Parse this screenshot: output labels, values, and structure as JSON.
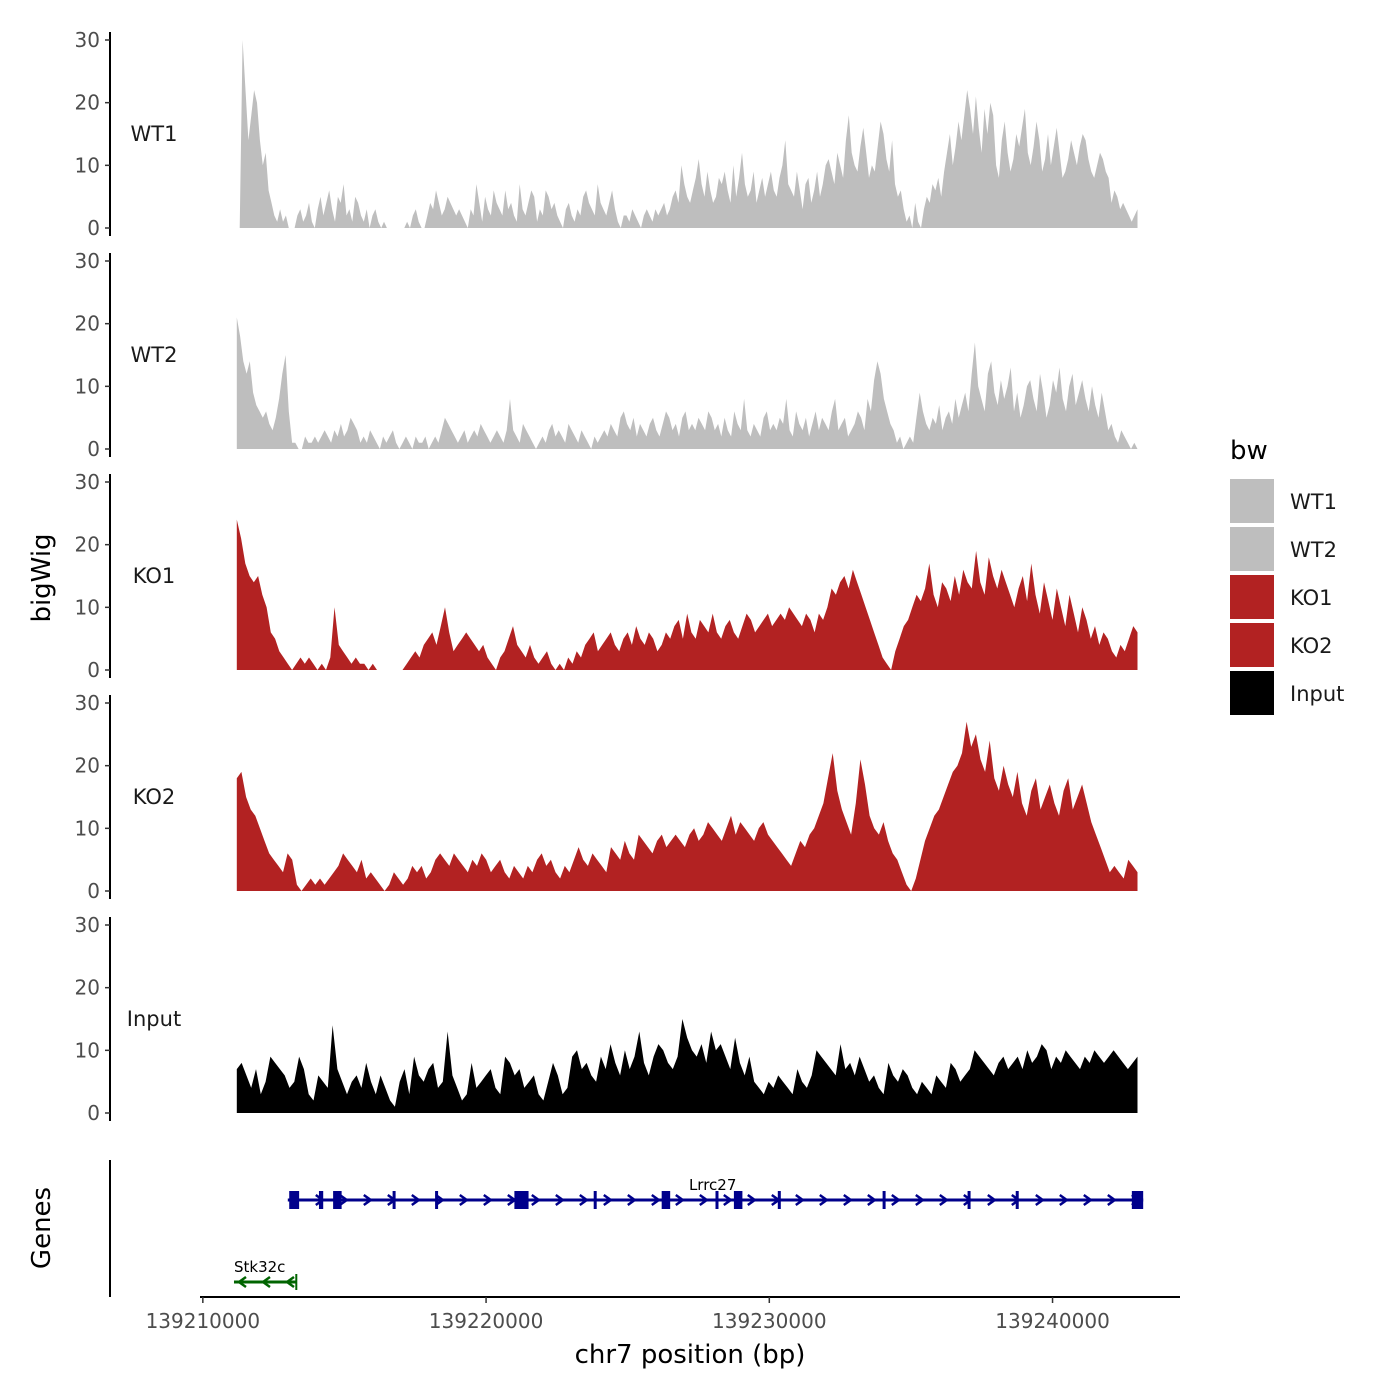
{
  "chart_data": {
    "type": "area",
    "title": "",
    "xlabel": "chr7 position (bp)",
    "ylabel": "bigWig",
    "genes_ylabel": "Genes",
    "xlim": [
      139209900,
      139244500
    ],
    "x_ticks": [
      139210000,
      139220000,
      139230000,
      139240000
    ],
    "x_tick_labels": [
      "139210000",
      "139220000",
      "139230000",
      "139240000"
    ],
    "ylim": [
      0,
      30
    ],
    "y_ticks": [
      0,
      10,
      20,
      30
    ],
    "y_tick_labels": [
      "0",
      "10",
      "20",
      "30"
    ],
    "grid": false,
    "legend": {
      "title": "bw",
      "placement": "right",
      "entries": [
        {
          "label": "WT1",
          "color": "#bebebe"
        },
        {
          "label": "WT2",
          "color": "#bebebe"
        },
        {
          "label": "KO1",
          "color": "#b22222"
        },
        {
          "label": "KO2",
          "color": "#b22222"
        },
        {
          "label": "Input",
          "color": "#000000"
        }
      ]
    },
    "series": [
      {
        "name": "WT1",
        "color": "#bebebe",
        "x_start": 139211200,
        "x_end": 139243000,
        "values": [
          0,
          0,
          30,
          22,
          14,
          18,
          22,
          20,
          14,
          10,
          12,
          6,
          4,
          2,
          1,
          3,
          1,
          2,
          0,
          0,
          0,
          2,
          3,
          1,
          2,
          4,
          1,
          0,
          3,
          5,
          2,
          4,
          6,
          3,
          1,
          5,
          4,
          7,
          2,
          3,
          1,
          5,
          4,
          2,
          1,
          3,
          0,
          2,
          3,
          1,
          0,
          1,
          0,
          0,
          0,
          0,
          0,
          0,
          0,
          1,
          0,
          2,
          3,
          1,
          0,
          0,
          2,
          4,
          3,
          6,
          4,
          2,
          3,
          5,
          4,
          3,
          2,
          3,
          2,
          1,
          0,
          3,
          2,
          7,
          4,
          1,
          5,
          3,
          2,
          6,
          4,
          3,
          2,
          6,
          3,
          4,
          2,
          1,
          7,
          3,
          2,
          4,
          6,
          5,
          1,
          3,
          2,
          6,
          5,
          3,
          4,
          2,
          1,
          0,
          3,
          4,
          2,
          1,
          3,
          2,
          5,
          6,
          4,
          3,
          2,
          7,
          4,
          3,
          2,
          4,
          6,
          3,
          1,
          0,
          2,
          2,
          1,
          3,
          2,
          1,
          0,
          2,
          3,
          2,
          1,
          3,
          2,
          3,
          4,
          2,
          3,
          5,
          6,
          4,
          10,
          7,
          5,
          4,
          6,
          8,
          11,
          7,
          5,
          9,
          6,
          4,
          5,
          8,
          7,
          9,
          6,
          4,
          10,
          5,
          8,
          12,
          7,
          5,
          6,
          9,
          4,
          6,
          8,
          5,
          7,
          9,
          6,
          5,
          8,
          10,
          14,
          7,
          6,
          5,
          9,
          6,
          3,
          7,
          8,
          4,
          6,
          9,
          5,
          7,
          10,
          11,
          9,
          7,
          12,
          10,
          8,
          14,
          18,
          12,
          10,
          9,
          13,
          16,
          12,
          8,
          10,
          9,
          13,
          17,
          15,
          11,
          9,
          14,
          7,
          5,
          6,
          3,
          1,
          2,
          0,
          4,
          1,
          0,
          3,
          5,
          4,
          7,
          6,
          8,
          5,
          9,
          12,
          15,
          10,
          13,
          17,
          14,
          18,
          22,
          19,
          15,
          21,
          16,
          12,
          19,
          15,
          20,
          18,
          10,
          8,
          14,
          17,
          12,
          9,
          11,
          15,
          13,
          16,
          19,
          12,
          10,
          13,
          17,
          14,
          9,
          11,
          15,
          10,
          13,
          16,
          12,
          8,
          9,
          11,
          14,
          12,
          10,
          13,
          15,
          14,
          11,
          9,
          8,
          10,
          12,
          11,
          9,
          8,
          4,
          6,
          5,
          3,
          4,
          3,
          2,
          1,
          2,
          3
        ]
      },
      {
        "name": "WT2",
        "color": "#bebebe",
        "x_start": 139211200,
        "x_end": 139243000,
        "values": [
          21,
          18,
          14,
          12,
          14,
          9,
          7,
          6,
          5,
          6,
          4,
          3,
          5,
          8,
          12,
          15,
          6,
          1,
          1,
          0,
          0,
          2,
          1,
          1,
          2,
          1,
          2,
          3,
          2,
          1,
          3,
          2,
          4,
          2,
          3,
          5,
          4,
          3,
          1,
          2,
          1,
          3,
          2,
          1,
          0,
          2,
          1,
          2,
          3,
          1,
          0,
          1,
          2,
          1,
          0,
          2,
          1,
          1,
          2,
          0,
          1,
          2,
          1,
          3,
          5,
          4,
          3,
          2,
          1,
          2,
          3,
          1,
          2,
          3,
          2,
          4,
          3,
          2,
          1,
          2,
          3,
          2,
          1,
          3,
          8,
          3,
          2,
          1,
          4,
          3,
          2,
          1,
          0,
          1,
          2,
          1,
          3,
          4,
          2,
          3,
          2,
          1,
          4,
          3,
          2,
          1,
          3,
          2,
          1,
          0,
          2,
          1,
          2,
          3,
          2,
          4,
          3,
          2,
          5,
          6,
          4,
          3,
          5,
          2,
          4,
          3,
          2,
          4,
          5,
          3,
          2,
          4,
          6,
          5,
          3,
          4,
          2,
          5,
          6,
          3,
          4,
          3,
          5,
          4,
          3,
          6,
          5,
          3,
          4,
          2,
          5,
          3,
          2,
          6,
          4,
          3,
          8,
          3,
          2,
          4,
          3,
          2,
          5,
          6,
          3,
          4,
          3,
          5,
          4,
          8,
          3,
          2,
          6,
          4,
          3,
          5,
          2,
          4,
          6,
          3,
          5,
          4,
          3,
          6,
          8,
          3,
          4,
          5,
          2,
          3,
          4,
          6,
          5,
          3,
          8,
          6,
          11,
          14,
          12,
          8,
          6,
          4,
          3,
          1,
          2,
          0,
          1,
          2,
          1,
          5,
          9,
          6,
          4,
          3,
          5,
          4,
          7,
          3,
          5,
          6,
          4,
          8,
          5,
          7,
          9,
          6,
          12,
          17,
          10,
          8,
          6,
          12,
          14,
          9,
          7,
          11,
          8,
          10,
          13,
          6,
          9,
          5,
          7,
          10,
          11,
          8,
          6,
          12,
          9,
          5,
          7,
          11,
          9,
          13,
          8,
          6,
          10,
          12,
          7,
          9,
          11,
          8,
          6,
          10,
          7,
          5,
          9,
          6,
          3,
          4,
          2,
          1,
          3,
          2,
          1,
          0,
          1,
          0
        ]
      },
      {
        "name": "KO1",
        "color": "#b22222",
        "x_start": 139211200,
        "x_end": 139243000,
        "values": [
          24,
          21,
          17,
          15,
          14,
          15,
          12,
          10,
          6,
          5,
          3,
          2,
          1,
          0,
          1,
          2,
          1,
          2,
          1,
          0,
          1,
          0,
          2,
          10,
          4,
          3,
          2,
          1,
          2,
          1,
          1,
          0,
          1,
          0,
          0,
          0,
          0,
          0,
          0,
          0,
          1,
          2,
          3,
          2,
          4,
          5,
          6,
          4,
          7,
          10,
          6,
          3,
          4,
          5,
          6,
          5,
          4,
          3,
          4,
          2,
          1,
          0,
          2,
          3,
          5,
          7,
          4,
          3,
          2,
          4,
          2,
          1,
          2,
          3,
          1,
          0,
          1,
          0,
          2,
          1,
          3,
          2,
          4,
          5,
          6,
          3,
          4,
          5,
          6,
          4,
          3,
          5,
          6,
          4,
          7,
          5,
          4,
          6,
          5,
          3,
          4,
          6,
          5,
          7,
          8,
          5,
          9,
          6,
          5,
          8,
          7,
          6,
          9,
          6,
          5,
          7,
          8,
          6,
          5,
          7,
          9,
          8,
          6,
          7,
          8,
          9,
          7,
          8,
          9,
          8,
          10,
          9,
          8,
          7,
          9,
          8,
          6,
          9,
          8,
          10,
          13,
          12,
          14,
          15,
          13,
          16,
          14,
          12,
          10,
          8,
          6,
          4,
          2,
          1,
          0,
          3,
          5,
          7,
          8,
          10,
          12,
          11,
          13,
          17,
          12,
          10,
          14,
          13,
          11,
          15,
          12,
          16,
          14,
          13,
          19,
          14,
          12,
          18,
          15,
          13,
          16,
          14,
          12,
          10,
          13,
          15,
          11,
          17,
          12,
          9,
          14,
          11,
          8,
          13,
          10,
          7,
          12,
          9,
          6,
          10,
          8,
          5,
          7,
          4,
          6,
          5,
          3,
          2,
          4,
          3,
          5,
          7,
          6
        ]
      },
      {
        "name": "KO2",
        "color": "#b22222",
        "x_start": 139211200,
        "x_end": 139243000,
        "values": [
          18,
          19,
          15,
          13,
          12,
          10,
          8,
          6,
          5,
          4,
          3,
          6,
          5,
          1,
          0,
          1,
          2,
          1,
          2,
          1,
          2,
          3,
          4,
          6,
          5,
          4,
          3,
          5,
          2,
          3,
          2,
          1,
          0,
          1,
          3,
          2,
          1,
          2,
          4,
          3,
          4,
          2,
          3,
          5,
          6,
          5,
          4,
          6,
          5,
          4,
          3,
          5,
          4,
          6,
          5,
          3,
          4,
          5,
          3,
          2,
          4,
          3,
          2,
          4,
          3,
          5,
          6,
          4,
          5,
          3,
          2,
          4,
          3,
          5,
          7,
          5,
          4,
          6,
          5,
          4,
          3,
          7,
          6,
          5,
          8,
          6,
          5,
          9,
          8,
          7,
          6,
          8,
          9,
          7,
          8,
          9,
          8,
          7,
          9,
          10,
          8,
          9,
          11,
          10,
          9,
          8,
          10,
          12,
          9,
          11,
          10,
          9,
          8,
          10,
          11,
          9,
          8,
          7,
          6,
          5,
          4,
          6,
          8,
          7,
          9,
          10,
          12,
          14,
          18,
          22,
          16,
          13,
          11,
          9,
          14,
          21,
          17,
          12,
          10,
          9,
          11,
          8,
          6,
          5,
          3,
          1,
          0,
          2,
          5,
          8,
          10,
          12,
          13,
          15,
          17,
          19,
          20,
          22,
          27,
          23,
          25,
          21,
          19,
          24,
          18,
          16,
          20,
          17,
          15,
          19,
          14,
          12,
          16,
          18,
          13,
          15,
          17,
          14,
          12,
          16,
          18,
          13,
          15,
          17,
          14,
          11,
          9,
          7,
          5,
          3,
          4,
          3,
          2,
          5,
          4,
          3
        ]
      },
      {
        "name": "Input",
        "color": "#000000",
        "x_start": 139211200,
        "x_end": 139243000,
        "values": [
          7,
          8,
          6,
          4,
          7,
          3,
          5,
          9,
          8,
          7,
          6,
          4,
          5,
          9,
          7,
          3,
          2,
          6,
          5,
          4,
          14,
          7,
          5,
          3,
          5,
          6,
          4,
          8,
          5,
          3,
          6,
          4,
          2,
          1,
          5,
          7,
          3,
          9,
          6,
          5,
          7,
          8,
          4,
          5,
          13,
          6,
          4,
          2,
          3,
          8,
          4,
          5,
          6,
          7,
          4,
          3,
          9,
          8,
          6,
          7,
          4,
          5,
          6,
          3,
          2,
          5,
          8,
          6,
          3,
          4,
          9,
          10,
          7,
          8,
          6,
          5,
          9,
          7,
          11,
          8,
          6,
          10,
          7,
          9,
          13,
          8,
          6,
          9,
          11,
          10,
          8,
          7,
          9,
          15,
          12,
          10,
          9,
          11,
          8,
          13,
          10,
          11,
          9,
          7,
          12,
          8,
          6,
          9,
          5,
          4,
          3,
          5,
          4,
          6,
          5,
          4,
          3,
          7,
          5,
          4,
          6,
          10,
          9,
          8,
          7,
          6,
          11,
          7,
          8,
          6,
          9,
          7,
          5,
          6,
          4,
          3,
          8,
          6,
          5,
          7,
          6,
          4,
          3,
          5,
          4,
          3,
          6,
          5,
          4,
          8,
          7,
          5,
          6,
          7,
          10,
          9,
          8,
          7,
          6,
          8,
          9,
          7,
          8,
          9,
          7,
          10,
          8,
          9,
          11,
          10,
          7,
          9,
          8,
          10,
          9,
          8,
          7,
          9,
          8,
          10,
          9,
          8,
          9,
          10,
          9,
          8,
          7,
          8,
          9
        ]
      }
    ],
    "genes": [
      {
        "name": "Stk32c",
        "strand": "-",
        "color": "#006400",
        "start": 139211100,
        "end": 139213300,
        "exons": []
      },
      {
        "name": "Lrrc27",
        "strand": "+",
        "color": "#00008b",
        "start": 139213000,
        "end": 139243200,
        "exons": [
          [
            139213050,
            139213400
          ],
          [
            139214100,
            139214250
          ],
          [
            139214600,
            139214900
          ],
          [
            139216700,
            139216800
          ],
          [
            139218200,
            139218300
          ],
          [
            139221000,
            139221500
          ],
          [
            139223800,
            139223900
          ],
          [
            139226200,
            139226500
          ],
          [
            139228100,
            139228200
          ],
          [
            139228750,
            139229050
          ],
          [
            139230300,
            139230400
          ],
          [
            139234000,
            139234100
          ],
          [
            139237000,
            139237100
          ],
          [
            139238700,
            139238800
          ],
          [
            139242800,
            139243200
          ]
        ]
      }
    ]
  }
}
